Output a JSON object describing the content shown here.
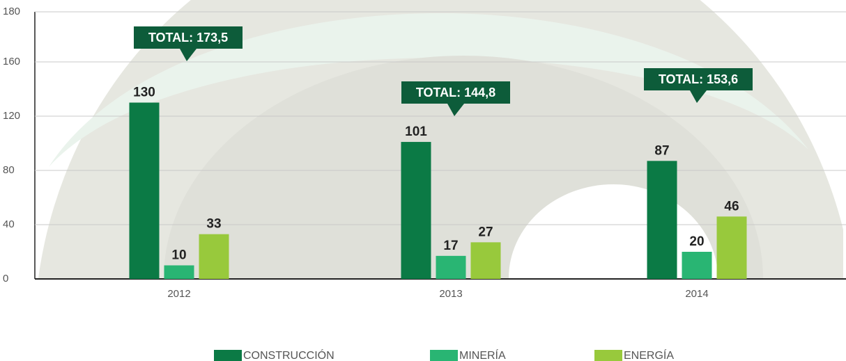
{
  "chart_data": {
    "type": "bar",
    "categories": [
      "2012",
      "2013",
      "2014"
    ],
    "series": [
      {
        "name": "CONSTRUCCIÓN",
        "color": "#0b7a45",
        "values": [
          130,
          101,
          87
        ]
      },
      {
        "name": "MINERÍA",
        "color": "#29b573",
        "values": [
          10,
          17,
          20
        ]
      },
      {
        "name": "ENERGÍA",
        "color": "#98c93c",
        "values": [
          33,
          27,
          46
        ]
      }
    ],
    "annotations": [
      "TOTAL: 173,5",
      "TOTAL: 144,8",
      "TOTAL: 153,6"
    ],
    "ylim": [
      0,
      180
    ],
    "yticks": [
      0,
      40,
      80,
      120,
      160,
      180
    ],
    "grid": true,
    "legend": "bottom"
  }
}
